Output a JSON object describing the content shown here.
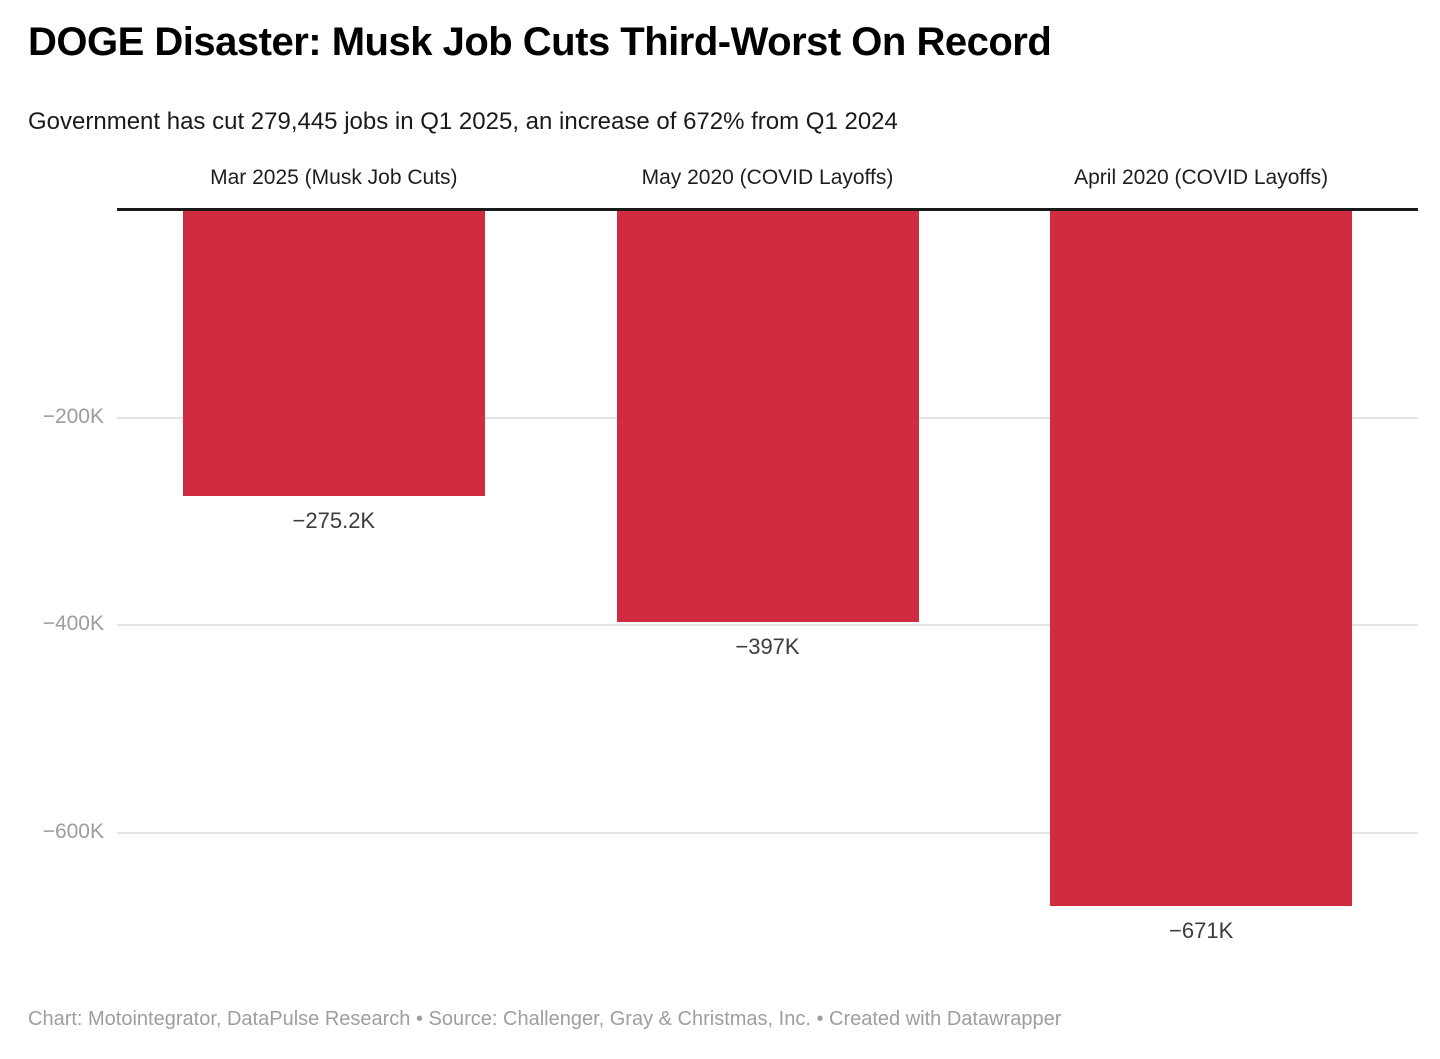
{
  "header": {
    "title": "DOGE Disaster: Musk Job Cuts Third-Worst On Record",
    "subtitle": "Government has cut 279,445 jobs in Q1 2025, an increase of 672% from Q1 2024"
  },
  "footer": {
    "attribution": "Chart: Motointegrator, DataPulse Research • Source: Challenger, Gray & Christmas, Inc. • Created with Datawrapper"
  },
  "chart_data": {
    "type": "bar",
    "orientation": "vertical-negative",
    "title": "DOGE Disaster: Musk Job Cuts Third-Worst On Record",
    "subtitle": "Government has cut 279,445 jobs in Q1 2025, an increase of 672% from Q1 2024",
    "categories": [
      "Mar 2025 (Musk Job Cuts)",
      "May 2020 (COVID Layoffs)",
      "April 2020 (COVID Layoffs)"
    ],
    "values": [
      -275200,
      -397000,
      -671000
    ],
    "value_labels": [
      "−275.2K",
      "−397K",
      "−671K"
    ],
    "yticks": [
      {
        "value": -200000,
        "label": "−200K"
      },
      {
        "value": -400000,
        "label": "−400K"
      },
      {
        "value": -600000,
        "label": "−600K"
      }
    ],
    "ylim": [
      -720000,
      0
    ],
    "xlabel": "",
    "ylabel": "",
    "grid": true,
    "legend_position": "none",
    "colors": {
      "bar": "#d02b3e",
      "zero_line": "#1a1a1a",
      "gridline": "#e4e4e4",
      "tick_label": "#9d9d9d",
      "category_label": "#1d1d1d",
      "value_label": "#3c3c3c"
    }
  }
}
